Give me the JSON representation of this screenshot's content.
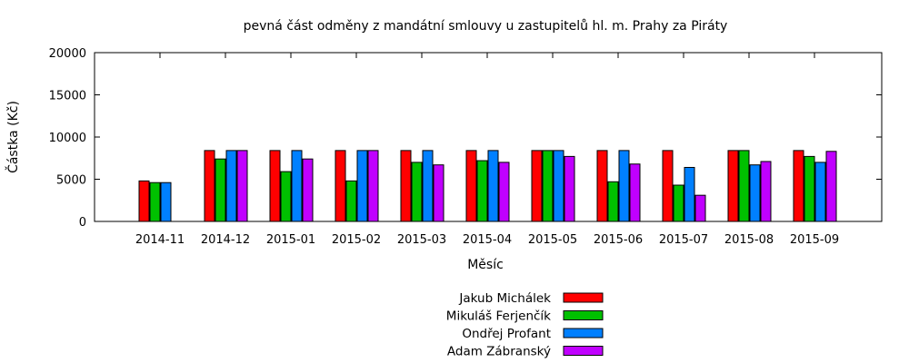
{
  "chart_data": {
    "type": "bar",
    "title": "pevná část odměny z mandátní smlouvy u zastupitelů hl. m. Prahy za Piráty",
    "xlabel": "Měsíc",
    "ylabel": "Částka (Kč)",
    "ylim": [
      0,
      20000
    ],
    "yticks": [
      0,
      5000,
      10000,
      15000,
      20000
    ],
    "grid": false,
    "legend_position": "bottom-center",
    "categories": [
      "2014-11",
      "2014-12",
      "2015-01",
      "2015-02",
      "2015-03",
      "2015-04",
      "2015-05",
      "2015-06",
      "2015-07",
      "2015-08",
      "2015-09"
    ],
    "series": [
      {
        "name": "Jakub Michálek",
        "color": "#ff0000",
        "values": [
          4800,
          8400,
          8400,
          8400,
          8400,
          8400,
          8400,
          8400,
          8400,
          8400,
          8400
        ]
      },
      {
        "name": "Mikuláš Ferjenčík",
        "color": "#00c000",
        "values": [
          4600,
          7400,
          5900,
          4800,
          7000,
          7200,
          8400,
          4700,
          4300,
          8400,
          7700
        ]
      },
      {
        "name": "Ondřej Profant",
        "color": "#0080ff",
        "values": [
          4600,
          8400,
          8400,
          8400,
          8400,
          8400,
          8400,
          8400,
          6400,
          6700,
          7000
        ]
      },
      {
        "name": "Adam Zábranský",
        "color": "#c000ff",
        "values": [
          null,
          8400,
          7400,
          8400,
          6700,
          7000,
          7700,
          6800,
          3100,
          7100,
          8300
        ]
      }
    ]
  }
}
